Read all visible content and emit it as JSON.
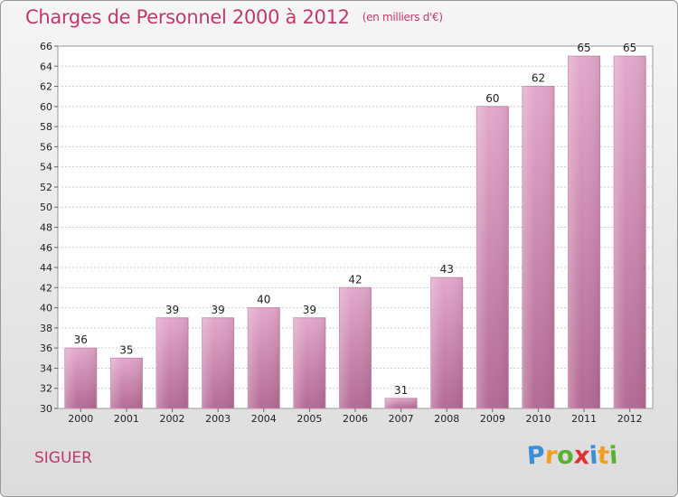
{
  "chart_data": {
    "type": "bar",
    "title": "Charges de Personnel 2000 à 2012",
    "subtitle": "(en milliers d'€)",
    "categories": [
      "2000",
      "2001",
      "2002",
      "2003",
      "2004",
      "2005",
      "2006",
      "2007",
      "2008",
      "2009",
      "2010",
      "2011",
      "2012"
    ],
    "values": [
      36,
      35,
      39,
      39,
      40,
      39,
      42,
      31,
      43,
      60,
      62,
      65,
      65
    ],
    "ylim": [
      30,
      66
    ],
    "ytick_step": 2,
    "grid": true,
    "bar_color": "#d48fb8"
  },
  "footer": {
    "town": "SIGUER",
    "logo_letters": [
      "P",
      "r",
      "o",
      "x",
      "i",
      "t",
      "i"
    ],
    "logo_colors": [
      "#3a8fd8",
      "#f0a020",
      "#5cb030",
      "#e03030",
      "#3a8fd8",
      "#f0a020",
      "#5cb030"
    ]
  }
}
